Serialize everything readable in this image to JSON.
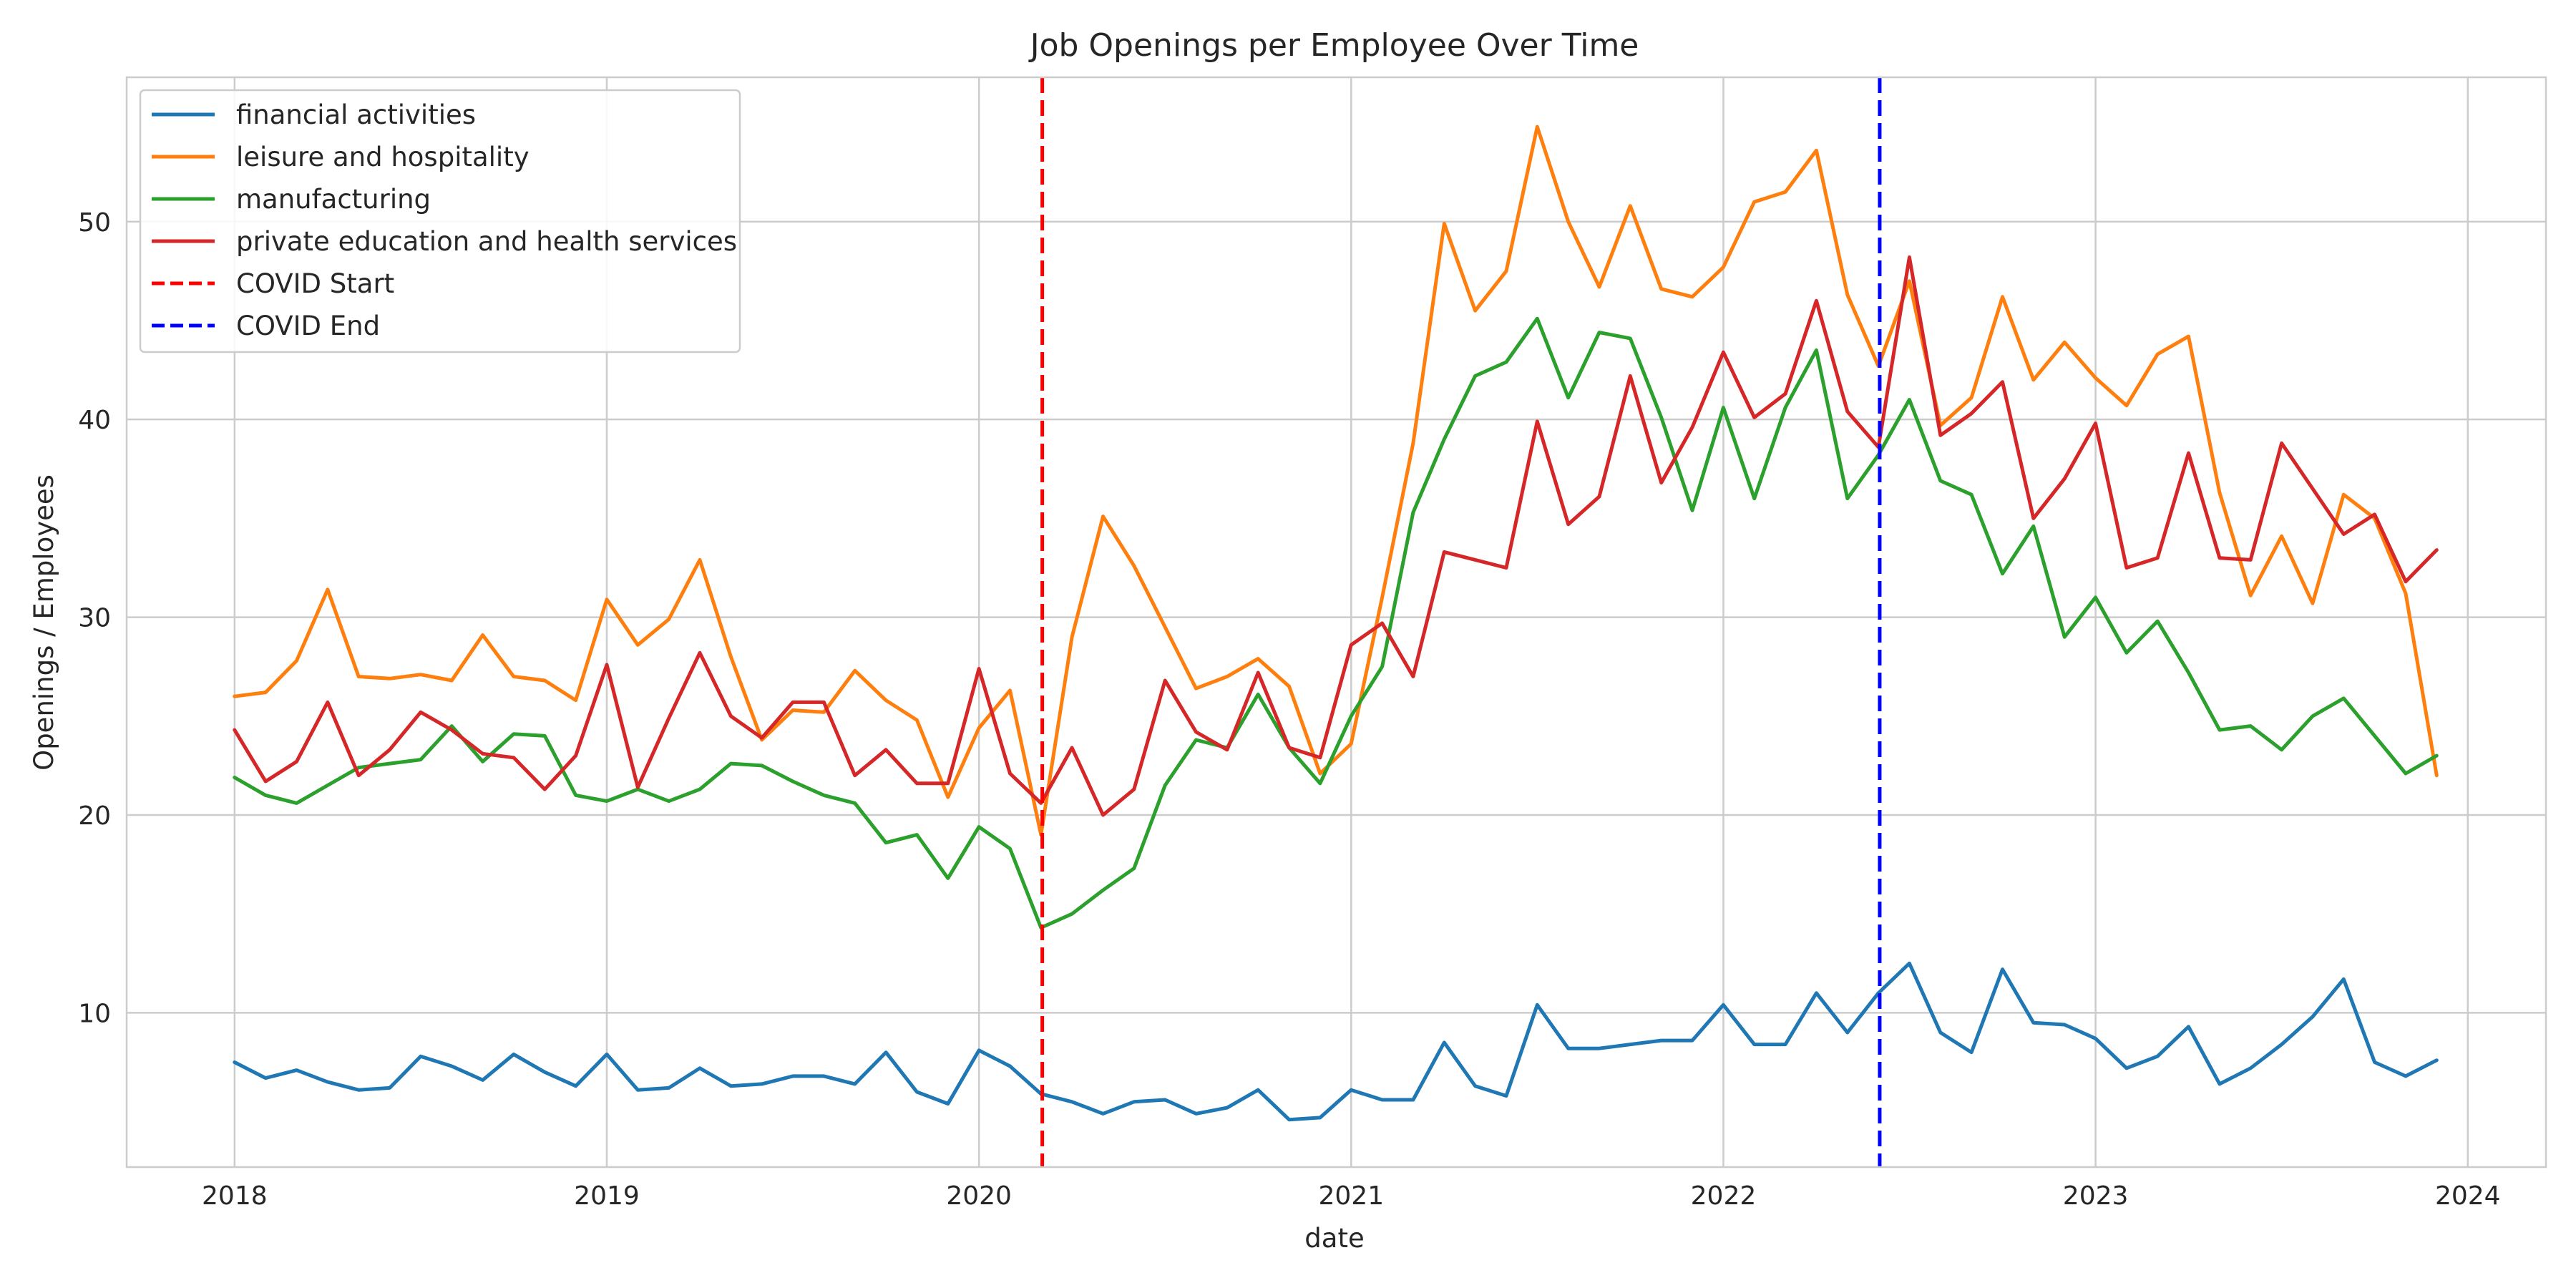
{
  "chart_data": {
    "type": "line",
    "title": "Job Openings per Employee Over Time",
    "xlabel": "date",
    "ylabel": "Openings / Employees",
    "xlim": [
      2017.71,
      2024.21
    ],
    "ylim": [
      2.2,
      57.3
    ],
    "x_ticks": [
      2018,
      2019,
      2020,
      2021,
      2022,
      2023,
      2024
    ],
    "x_tick_labels": [
      "2018",
      "2019",
      "2020",
      "2021",
      "2022",
      "2023",
      "2024"
    ],
    "y_ticks": [
      10,
      20,
      30,
      40,
      50
    ],
    "y_tick_labels": [
      "10",
      "20",
      "30",
      "40",
      "50"
    ],
    "grid": true,
    "legend_position": "top-left",
    "x_start": 2018,
    "x_step": 0.08333,
    "series": [
      {
        "name": "financial activities",
        "color": "#1f77b4",
        "values": [
          7.5,
          6.7,
          7.1,
          6.5,
          6.1,
          6.2,
          7.8,
          7.3,
          6.6,
          7.9,
          7.0,
          6.3,
          7.9,
          6.1,
          6.2,
          7.2,
          6.3,
          6.4,
          6.8,
          6.8,
          6.4,
          8.0,
          6.0,
          5.4,
          8.1,
          7.3,
          5.9,
          5.5,
          4.9,
          5.5,
          5.6,
          4.9,
          5.2,
          6.1,
          4.6,
          4.7,
          6.1,
          5.6,
          5.6,
          8.5,
          6.3,
          5.8,
          10.4,
          8.2,
          8.2,
          8.4,
          8.6,
          8.6,
          10.4,
          8.4,
          8.4,
          11.0,
          9.0,
          11.0,
          12.5,
          9.0,
          8.0,
          12.2,
          9.5,
          9.4,
          8.7,
          7.2,
          7.8,
          9.3,
          6.4,
          7.2,
          8.4,
          9.8,
          11.7,
          7.5,
          6.8,
          7.6
        ]
      },
      {
        "name": "leisure and hospitality",
        "color": "#ff7f0e",
        "values": [
          26.0,
          26.2,
          27.8,
          31.4,
          27.0,
          26.9,
          27.1,
          26.8,
          29.1,
          27.0,
          26.8,
          25.8,
          30.9,
          28.6,
          29.9,
          32.9,
          28.0,
          23.8,
          25.3,
          25.2,
          27.3,
          25.8,
          24.8,
          20.9,
          24.4,
          26.3,
          19.0,
          29.0,
          35.1,
          32.6,
          29.5,
          26.4,
          27.0,
          27.9,
          26.5,
          22.1,
          23.6,
          31.0,
          38.8,
          49.9,
          45.5,
          47.5,
          54.8,
          50.0,
          46.7,
          50.8,
          46.6,
          46.2,
          47.7,
          51.0,
          51.5,
          53.6,
          46.3,
          42.7,
          47.0,
          39.7,
          41.1,
          46.2,
          42.0,
          43.9,
          42.1,
          40.7,
          43.3,
          44.2,
          36.3,
          31.1,
          34.1,
          30.7,
          36.2,
          35.0,
          31.2,
          22.0
        ]
      },
      {
        "name": "manufacturing",
        "color": "#2ca02c",
        "values": [
          21.9,
          21.0,
          20.6,
          21.5,
          22.4,
          22.6,
          22.8,
          24.5,
          22.7,
          24.1,
          24.0,
          21.0,
          20.7,
          21.3,
          20.7,
          21.3,
          22.6,
          22.5,
          21.7,
          21.0,
          20.6,
          18.6,
          19.0,
          16.8,
          19.4,
          18.3,
          14.3,
          15.0,
          16.2,
          17.3,
          21.5,
          23.8,
          23.4,
          26.1,
          23.4,
          21.6,
          25.0,
          27.5,
          35.3,
          39.0,
          42.2,
          42.9,
          45.1,
          41.1,
          44.4,
          44.1,
          40.1,
          35.4,
          40.6,
          36.0,
          40.6,
          43.5,
          36.0,
          38.2,
          41.0,
          36.9,
          36.2,
          32.2,
          34.6,
          29.0,
          31.0,
          28.2,
          29.8,
          27.2,
          24.3,
          24.5,
          23.3,
          25.0,
          25.9,
          24.0,
          22.1,
          23.0
        ]
      },
      {
        "name": "private education and health services",
        "color": "#d62728",
        "values": [
          24.3,
          21.7,
          22.7,
          25.7,
          22.0,
          23.3,
          25.2,
          24.3,
          23.1,
          22.9,
          21.3,
          23.0,
          27.6,
          21.4,
          24.9,
          28.2,
          25.0,
          23.9,
          25.7,
          25.7,
          22.0,
          23.3,
          21.6,
          21.6,
          27.4,
          22.1,
          20.6,
          23.4,
          20.0,
          21.3,
          26.8,
          24.2,
          23.3,
          27.2,
          23.4,
          22.9,
          28.6,
          29.7,
          27.0,
          33.3,
          32.9,
          32.5,
          39.9,
          34.7,
          36.1,
          42.2,
          36.8,
          39.6,
          43.4,
          40.1,
          41.3,
          46.0,
          40.4,
          38.6,
          48.2,
          39.2,
          40.3,
          41.9,
          35.0,
          37.0,
          39.8,
          32.5,
          33.0,
          38.3,
          33.0,
          32.9,
          38.8,
          36.5,
          34.2,
          35.2,
          31.8,
          33.4
        ]
      }
    ],
    "vertical_lines": [
      {
        "name": "COVID Start",
        "x": 2020.17,
        "color": "#ff0000"
      },
      {
        "name": "COVID End",
        "x": 2022.42,
        "color": "#0000ff"
      }
    ]
  }
}
